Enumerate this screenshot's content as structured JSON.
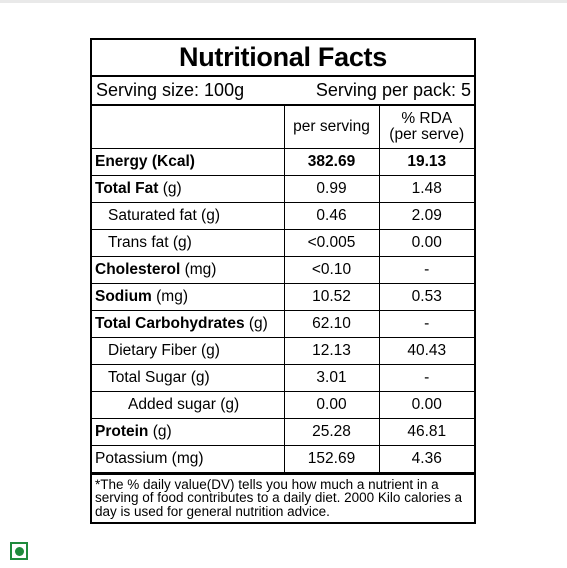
{
  "label": {
    "title": "Nutritional Facts",
    "serving_size": "Serving size: 100g",
    "serving_per_pack": "Serving per pack: 5",
    "columns": {
      "per_serving": "per serving",
      "rda_line1": "% RDA",
      "rda_line2": "(per serve)"
    },
    "rows": [
      {
        "name": "Energy",
        "unit": " (Kcal)",
        "per_serving": "382.69",
        "rda": "19.13"
      },
      {
        "name": "Total Fat",
        "unit": " (g)",
        "per_serving": "0.99",
        "rda": "1.48"
      },
      {
        "name": "Saturated fat (g)",
        "per_serving": "0.46",
        "rda": "2.09"
      },
      {
        "name": "Trans fat (g)",
        "per_serving": "<0.005",
        "rda": "0.00"
      },
      {
        "name": "Cholesterol",
        "unit": " (mg)",
        "per_serving": "<0.10",
        "rda": "-"
      },
      {
        "name": "Sodium",
        "unit": " (mg)",
        "per_serving": "10.52",
        "rda": "0.53"
      },
      {
        "name": "Total Carbohydrates",
        "unit": " (g)",
        "per_serving": "62.10",
        "rda": "-"
      },
      {
        "name": "Dietary Fiber (g)",
        "per_serving": "12.13",
        "rda": "40.43"
      },
      {
        "name": "Total Sugar (g)",
        "per_serving": "3.01",
        "rda": "-"
      },
      {
        "name": "Added sugar (g)",
        "per_serving": "0.00",
        "rda": "0.00"
      },
      {
        "name": "Protein",
        "unit": " (g)",
        "per_serving": "25.28",
        "rda": "46.81"
      },
      {
        "name": "Potassium (mg)",
        "per_serving": "152.69",
        "rda": "4.36"
      }
    ],
    "footnote": "*The % daily value(DV) tells you how much a nutrient in a serving of food contributes to a daily diet. 2000 Kilo calories a day is used for general nutrition advice."
  },
  "badge": {
    "icon": "veg-mark-icon",
    "color": "#1f8a3c"
  }
}
